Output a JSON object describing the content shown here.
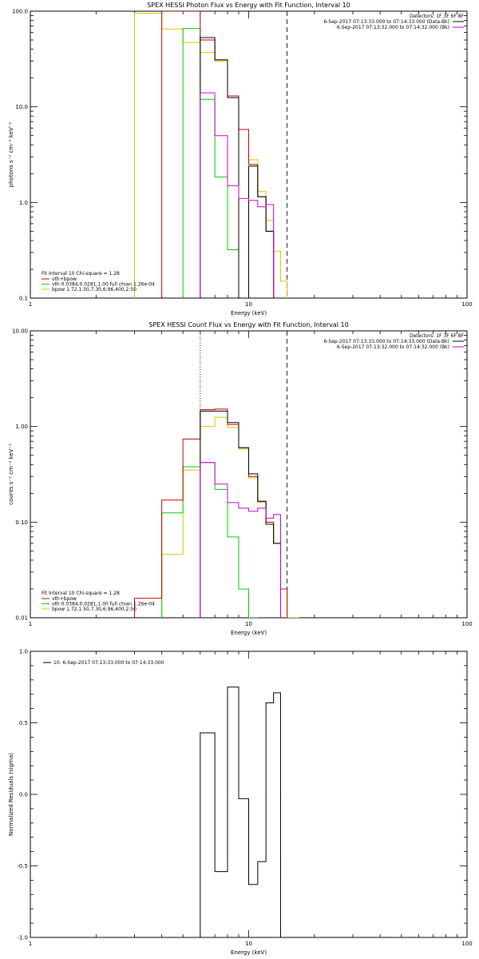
{
  "colors": {
    "data": "#000000",
    "total_fit": "#cc0000",
    "vth": "#00cc00",
    "bpow": "#d8c800",
    "background": "#cc00cc",
    "frame": "#000000"
  },
  "chart_data": [
    {
      "type": "line",
      "title": "SPEX HESSI Photon Flux vs Energy with Fit Function, Interval 10",
      "xlabel": "Energy (keV)",
      "ylabel": "photons s⁻¹ cm⁻² keV⁻¹",
      "xscale": "log",
      "yscale": "log",
      "xlim": [
        1,
        100
      ],
      "ylim": [
        0.1,
        100
      ],
      "x_ticks": [
        1,
        10,
        100
      ],
      "x_tick_labels": [
        "1",
        "10",
        "100"
      ],
      "y_ticks": [
        0.1,
        1,
        10,
        100
      ],
      "y_tick_labels": [
        "0.1",
        "1.0",
        "10.0",
        "100.0"
      ],
      "vertical_lines": [
        {
          "x": 6,
          "style": "dotted"
        },
        {
          "x": 15,
          "style": "dashed"
        }
      ],
      "detectors_text": "Detectors: 1F 3F 6F 8F",
      "header_legend": [
        {
          "text": "6-Sep-2017 07:13:33.000 to 07:14:33.000 (Data-Bk)",
          "color": "#000000"
        },
        {
          "text": "6-Sep-2017 07:13:32.000 to 07:14:32.000 (Bk)",
          "color": "#cc00cc"
        }
      ],
      "fit_info": "Fit Interval 10   Chi-square = 1.28",
      "legend": [
        {
          "text": "vth+bpow",
          "color": "#cc0000"
        },
        {
          "text": "vth 0.0384,0.0281,1.00  full chian 1.26e-04",
          "color": "#00cc00"
        },
        {
          "text": "bpow 1.72,1.50,7.30,6.96,400,2.50",
          "color": "#d8c800"
        }
      ],
      "bin_edges": [
        3,
        4,
        5,
        6,
        7,
        8,
        9,
        10,
        11,
        12,
        13,
        14,
        15,
        16
      ],
      "series": [
        {
          "name": "bpow",
          "color": "#d8c800",
          "values": [
            95,
            65,
            47,
            37,
            30,
            13,
            5.8,
            2.8,
            1.3,
            0.65,
            0.31,
            0.15,
            null
          ]
        },
        {
          "name": "vth",
          "color": "#00cc00",
          "values": [
            null,
            null,
            66,
            12,
            1.85,
            0.32,
            null,
            null,
            null,
            null,
            null,
            null,
            null
          ]
        },
        {
          "name": "vth+bpow",
          "color": "#cc0000",
          "values": [
            null,
            100,
            100,
            50,
            31,
            13,
            5.8,
            2.5,
            1.15,
            0.5,
            null,
            null,
            null
          ]
        },
        {
          "name": "Data-Bk",
          "color": "#000000",
          "values": [
            null,
            null,
            null,
            53,
            31,
            12.5,
            null,
            2.4,
            1.15,
            0.5,
            null,
            null,
            null
          ]
        },
        {
          "name": "Bk",
          "color": "#cc00cc",
          "values": [
            null,
            null,
            null,
            14,
            5,
            1.5,
            1.1,
            1.05,
            0.9,
            0.95,
            null,
            null,
            null
          ]
        }
      ]
    },
    {
      "type": "line",
      "title": "SPEX HESSI Count Flux vs Energy with Fit Function, Interval 10",
      "xlabel": "Energy (keV)",
      "ylabel": "counts s⁻¹ cm⁻² keV⁻¹",
      "xscale": "log",
      "yscale": "log",
      "xlim": [
        1,
        100
      ],
      "ylim": [
        0.01,
        10
      ],
      "x_ticks": [
        1,
        10,
        100
      ],
      "x_tick_labels": [
        "1",
        "10",
        "100"
      ],
      "y_ticks": [
        0.01,
        0.1,
        1,
        10
      ],
      "y_tick_labels": [
        "0.01",
        "0.10",
        "1.00",
        "10.00"
      ],
      "vertical_lines": [
        {
          "x": 6,
          "style": "dotted"
        },
        {
          "x": 15,
          "style": "dashed"
        }
      ],
      "detectors_text": "Detectors: 1F 3F 6F 8F",
      "header_legend": [
        {
          "text": "6-Sep-2017 07:13:33.000 to 07:14:33.000 (Data-Bk)",
          "color": "#000000"
        },
        {
          "text": "6-Sep-2017 07:13:32.000 to 07:14:32.000 (Bk)",
          "color": "#cc00cc"
        }
      ],
      "fit_info": "Fit Interval 10   Chi-square = 1.28",
      "legend": [
        {
          "text": "vth+bpow",
          "color": "#cc0000"
        },
        {
          "text": "vth 0.0384,0.0281,1.00  full chian 1.26e-04",
          "color": "#00cc00"
        },
        {
          "text": "bpow 1.72,1.50,7.30,6.96,400,2.50",
          "color": "#d8c800"
        }
      ],
      "bin_edges": [
        3,
        4,
        5,
        6,
        7,
        8,
        9,
        10,
        11,
        12,
        13,
        14,
        15,
        16,
        17
      ],
      "series": [
        {
          "name": "bpow",
          "color": "#d8c800",
          "values": [
            null,
            0.046,
            0.35,
            1.0,
            1.25,
            0.98,
            0.58,
            0.29,
            0.16,
            0.1,
            0.06,
            0.02,
            0.01,
            0.01
          ]
        },
        {
          "name": "vth",
          "color": "#00cc00",
          "values": [
            null,
            0.125,
            0.38,
            0.42,
            0.22,
            0.07,
            0.02,
            0.01,
            null,
            null,
            null,
            null,
            null,
            null
          ]
        },
        {
          "name": "vth+bpow",
          "color": "#cc0000",
          "values": [
            0.016,
            0.17,
            0.74,
            1.5,
            1.52,
            1.05,
            0.6,
            0.3,
            0.165,
            0.1,
            0.06,
            0.02,
            null,
            null
          ]
        },
        {
          "name": "Data-Bk",
          "color": "#000000",
          "values": [
            null,
            null,
            null,
            1.45,
            1.45,
            1.1,
            0.6,
            0.32,
            0.165,
            0.095,
            0.06,
            null,
            null,
            null
          ]
        },
        {
          "name": "Bk",
          "color": "#cc00cc",
          "values": [
            null,
            null,
            null,
            0.42,
            0.25,
            0.16,
            0.14,
            0.13,
            0.14,
            0.11,
            0.12,
            null,
            null,
            null
          ]
        }
      ]
    },
    {
      "type": "line",
      "title": "",
      "xlabel": "Energy (keV)",
      "ylabel": "Normalized Residuals (sigma)",
      "xscale": "log",
      "yscale": "linear",
      "xlim": [
        1,
        100
      ],
      "ylim": [
        -1,
        1
      ],
      "x_ticks": [
        1,
        10,
        100
      ],
      "x_tick_labels": [
        "1",
        "10",
        "100"
      ],
      "y_ticks": [
        -1,
        -0.5,
        0,
        0.5,
        1
      ],
      "y_tick_labels": [
        "-1.0",
        "-0.5",
        "0.0",
        "0.5",
        "1.0"
      ],
      "legend": [
        {
          "text": "10.  6-Sep-2017 07:13:33.000 to 07:14:33.000",
          "color": "#000000"
        }
      ],
      "bin_edges": [
        6,
        7,
        8,
        9,
        10,
        11,
        12,
        13,
        14,
        15
      ],
      "series": [
        {
          "name": "10.  6-Sep-2017 07:13:33.000 to 07:14:33.000",
          "color": "#000000",
          "values": [
            0.43,
            -0.54,
            0.75,
            -0.03,
            -0.63,
            -0.47,
            0.64,
            0.71,
            null
          ]
        }
      ]
    }
  ]
}
